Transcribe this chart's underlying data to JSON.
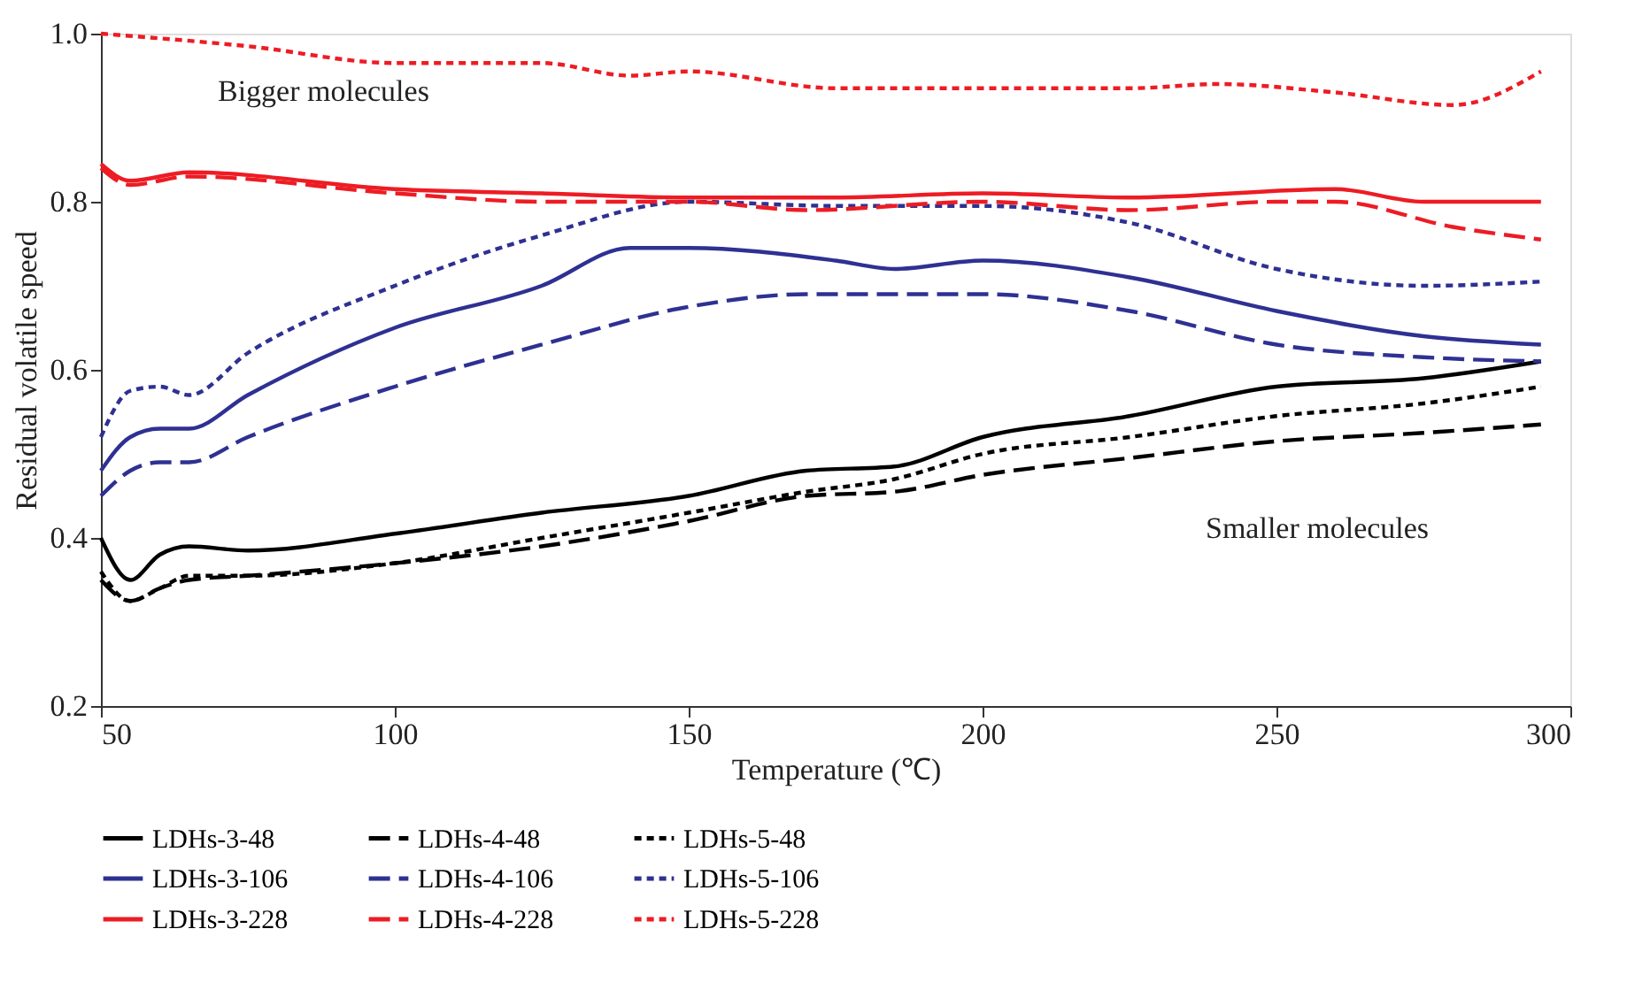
{
  "chart_data": {
    "type": "line",
    "xlabel": "Temperature (℃)",
    "ylabel": "Residual volatile speed",
    "xlim": [
      50,
      300
    ],
    "xticks": [
      50,
      100,
      150,
      200,
      250,
      300
    ],
    "ylim": [
      0.2,
      1.0
    ],
    "yticks": [
      0.2,
      0.4,
      0.6,
      0.8,
      {
        "value": 1.0,
        "label": "1.0"
      }
    ],
    "grid": false,
    "legend": "bottom",
    "marker": "none",
    "annotations": [
      "Bigger molecules",
      "Smaller molecules"
    ],
    "series": [
      {
        "name": "LDHs-3-48",
        "color": "#000000",
        "line_style": "solid",
        "x": [
          50,
          55,
          60,
          65,
          75,
          100,
          125,
          150,
          170,
          185,
          200,
          225,
          250,
          275,
          295
        ],
        "values": [
          0.4,
          0.35,
          0.38,
          0.39,
          0.385,
          0.405,
          0.43,
          0.45,
          0.48,
          0.485,
          0.52,
          0.545,
          0.58,
          0.59,
          0.61
        ]
      },
      {
        "name": "LDHs-4-48",
        "color": "#000000",
        "line_style": "dashed",
        "x": [
          50,
          55,
          60,
          65,
          75,
          100,
          125,
          150,
          170,
          185,
          200,
          225,
          250,
          275,
          295
        ],
        "values": [
          0.35,
          0.325,
          0.34,
          0.35,
          0.355,
          0.37,
          0.39,
          0.42,
          0.45,
          0.455,
          0.475,
          0.495,
          0.515,
          0.525,
          0.535
        ]
      },
      {
        "name": "LDHs-5-48",
        "color": "#000000",
        "line_style": "dotted",
        "x": [
          50,
          55,
          60,
          65,
          75,
          100,
          125,
          150,
          170,
          185,
          200,
          225,
          250,
          275,
          295
        ],
        "values": [
          0.36,
          0.325,
          0.34,
          0.355,
          0.355,
          0.37,
          0.4,
          0.43,
          0.455,
          0.47,
          0.5,
          0.52,
          0.545,
          0.56,
          0.58
        ]
      },
      {
        "name": "LDHs-3-106",
        "color": "#2e3192",
        "line_style": "solid",
        "x": [
          50,
          55,
          60,
          65,
          75,
          100,
          125,
          140,
          150,
          175,
          185,
          200,
          225,
          250,
          275,
          295
        ],
        "values": [
          0.48,
          0.52,
          0.53,
          0.53,
          0.57,
          0.65,
          0.7,
          0.745,
          0.745,
          0.73,
          0.72,
          0.73,
          0.71,
          0.67,
          0.64,
          0.63
        ]
      },
      {
        "name": "LDHs-4-106",
        "color": "#2e3192",
        "line_style": "dashed",
        "x": [
          50,
          55,
          60,
          65,
          75,
          100,
          125,
          150,
          170,
          200,
          225,
          250,
          275,
          295
        ],
        "values": [
          0.45,
          0.48,
          0.49,
          0.49,
          0.52,
          0.58,
          0.63,
          0.675,
          0.69,
          0.69,
          0.67,
          0.63,
          0.615,
          0.61
        ]
      },
      {
        "name": "LDHs-5-106",
        "color": "#2e3192",
        "line_style": "dotted",
        "x": [
          50,
          55,
          60,
          65,
          75,
          100,
          125,
          150,
          175,
          200,
          225,
          250,
          275,
          295
        ],
        "values": [
          0.52,
          0.575,
          0.58,
          0.57,
          0.62,
          0.7,
          0.76,
          0.8,
          0.795,
          0.795,
          0.775,
          0.72,
          0.7,
          0.705
        ]
      },
      {
        "name": "LDHs-3-228",
        "color": "#ed1c24",
        "line_style": "solid",
        "x": [
          50,
          55,
          65,
          100,
          125,
          150,
          175,
          200,
          225,
          260,
          275,
          295
        ],
        "values": [
          0.845,
          0.825,
          0.835,
          0.815,
          0.81,
          0.805,
          0.805,
          0.81,
          0.805,
          0.815,
          0.8,
          0.8
        ]
      },
      {
        "name": "LDHs-4-228",
        "color": "#ed1c24",
        "line_style": "dashed",
        "x": [
          50,
          55,
          65,
          100,
          125,
          150,
          170,
          200,
          225,
          250,
          260,
          280,
          295
        ],
        "values": [
          0.84,
          0.82,
          0.83,
          0.81,
          0.8,
          0.8,
          0.79,
          0.8,
          0.79,
          0.8,
          0.8,
          0.77,
          0.755
        ]
      },
      {
        "name": "LDHs-5-228",
        "color": "#ed1c24",
        "line_style": "dotted",
        "x": [
          50,
          75,
          100,
          125,
          140,
          150,
          175,
          200,
          225,
          240,
          260,
          280,
          295
        ],
        "values": [
          1.0,
          0.985,
          0.965,
          0.965,
          0.95,
          0.955,
          0.935,
          0.935,
          0.935,
          0.94,
          0.93,
          0.915,
          0.955
        ]
      }
    ]
  }
}
